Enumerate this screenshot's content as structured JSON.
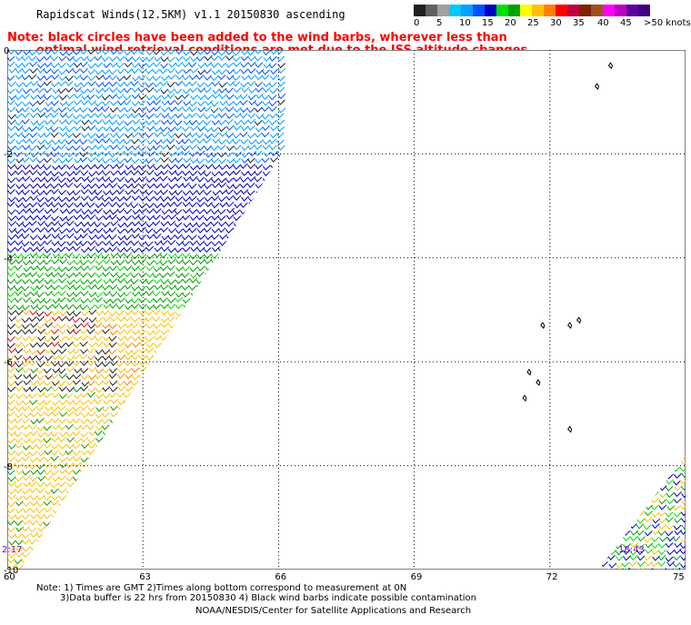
{
  "title": "Rapidscat Winds(12.5KM) v1.1 20150830 ascending",
  "note": {
    "line1": "Note: black circles have been added to the wind barbs, wherever less than",
    "line2": "optimal wind retrieval conditions are met due to the ISS altitude changes."
  },
  "colorbar": {
    "colors": [
      "#202020",
      "#606060",
      "#a0a0a0",
      "#00c8ff",
      "#00a0ff",
      "#0050ff",
      "#0000c0",
      "#00e000",
      "#00a000",
      "#ffff00",
      "#ffc000",
      "#ff8000",
      "#ff0000",
      "#c00040",
      "#802000",
      "#a05020",
      "#ff00ff",
      "#c000c0",
      "#6000a0",
      "#400080"
    ],
    "labels": [
      "0",
      "5",
      "10",
      "15",
      "20",
      "25",
      "30",
      "35",
      "40",
      "45",
      ">50 knots"
    ]
  },
  "lat_labels": [
    "0",
    "-2",
    "-4",
    "-6",
    "-8",
    "-10"
  ],
  "lon_labels": [
    "60",
    "63",
    "66",
    "69",
    "72",
    "75"
  ],
  "time_labels": {
    "left": "2:17",
    "right": "18:43"
  },
  "footer": {
    "line1": "Note: 1) Times are GMT 2)Times along bottom correspond to measurement at 0N",
    "line2": "3)Data buffer is 22 hrs from 20150830 4) Black wind barbs indicate possible contamination",
    "credit": "NOAA/NESDIS/Center for Satellite Applications and Research"
  },
  "map_data": {
    "lon_range": [
      60,
      75
    ],
    "lat_range": [
      -10,
      0
    ],
    "grid": true,
    "swaths": [
      {
        "name": "west swath",
        "corners": [
          [
            60,
            0
          ],
          [
            67.5,
            0
          ],
          [
            60,
            -10.4
          ]
        ]
      },
      {
        "name": "east swath",
        "corners": [
          [
            75,
            -7.8
          ],
          [
            75,
            -10.2
          ],
          [
            72.9,
            -10.2
          ]
        ]
      }
    ],
    "wind_zones": [
      {
        "lat_from": 0,
        "lat_to": -2.2,
        "color": "#00a0ff"
      },
      {
        "lat_from": -2.2,
        "lat_to": -3.8,
        "color": "#0000c0"
      },
      {
        "lat_from": -3.8,
        "lat_to": -5.0,
        "color": "#00a000"
      },
      {
        "lat_from": -5.0,
        "lat_to": -10.4,
        "color": "#ffc000"
      }
    ],
    "islands": [
      {
        "lon": 73.0,
        "lat": -0.7
      },
      {
        "lon": 73.3,
        "lat": -0.3
      },
      {
        "lon": 71.8,
        "lat": -5.3
      },
      {
        "lon": 72.4,
        "lat": -5.3
      },
      {
        "lon": 72.6,
        "lat": -5.2
      },
      {
        "lon": 71.5,
        "lat": -6.2
      },
      {
        "lon": 71.7,
        "lat": -6.4
      },
      {
        "lon": 71.4,
        "lat": -6.7
      },
      {
        "lon": 72.4,
        "lat": -7.3
      }
    ]
  }
}
